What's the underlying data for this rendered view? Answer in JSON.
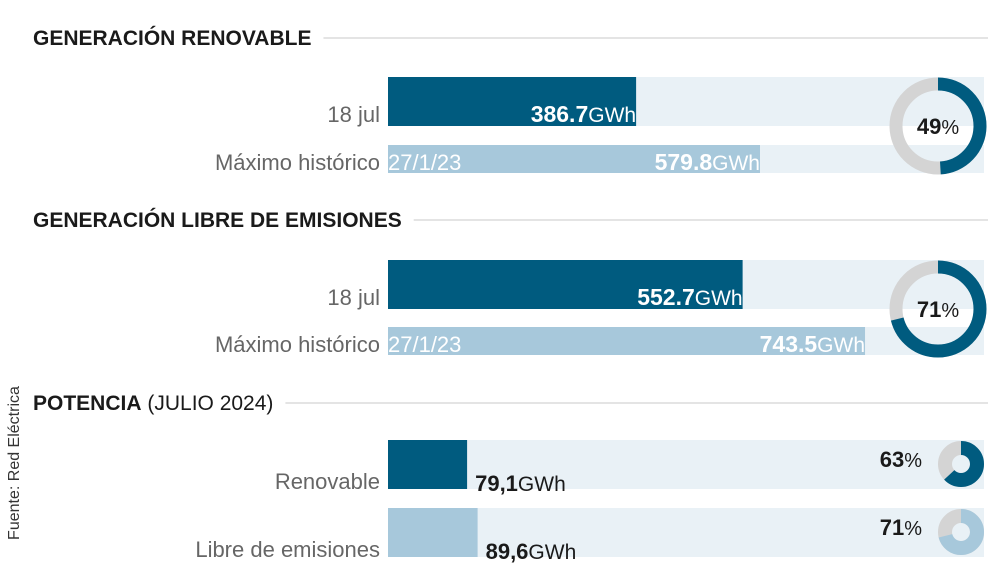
{
  "source": "Fuente: Red Eléctrica",
  "colors": {
    "dark": "#005b7f",
    "light": "#a7c8db",
    "track": "#e9f1f6",
    "gray": "#d4d4d4",
    "rule": "#c8c8c8",
    "text": "#1a1a1a",
    "muted": "#666666"
  },
  "chart_data": [
    {
      "type": "bar",
      "title": "GENERACIÓN RENOVABLE",
      "subtitle": "",
      "unit": "GWh",
      "scale_max": 579.8,
      "rows": [
        {
          "label": "18 jul",
          "date": "",
          "value": 386.7,
          "value_text": "386.7",
          "style": "dark"
        },
        {
          "label": "Máximo histórico",
          "date": "27/1/23",
          "value": 579.8,
          "value_text": "579.8",
          "style": "light"
        }
      ],
      "donut": {
        "percent": 49,
        "style": "dark"
      }
    },
    {
      "type": "bar",
      "title": "GENERACIÓN LIBRE DE EMISIONES",
      "subtitle": "",
      "unit": "GWh",
      "scale_max": 743.5,
      "rows": [
        {
          "label": "18 jul",
          "date": "",
          "value": 552.7,
          "value_text": "552.7",
          "style": "dark"
        },
        {
          "label": "Máximo histórico",
          "date": "27/1/23",
          "value": 743.5,
          "value_text": "743.5",
          "style": "light"
        }
      ],
      "donut": {
        "percent": 71,
        "style": "dark"
      }
    },
    {
      "type": "bar",
      "title": "POTENCIA",
      "subtitle": "(JULIO 2024)",
      "unit": "GWh",
      "scale_max": 660,
      "rows": [
        {
          "label": "Renovable",
          "date": "",
          "value": 79.1,
          "value_text": "79,1",
          "style": "dark",
          "percent": 63
        },
        {
          "label": "Libre de emisiones",
          "date": "",
          "value": 89.6,
          "value_text": "89,6",
          "style": "light",
          "percent": 71
        }
      ]
    }
  ]
}
